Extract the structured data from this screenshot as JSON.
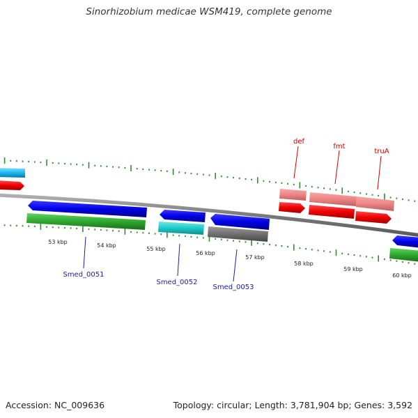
{
  "title": "Sinorhizobium medicae WSM419, complete genome",
  "footer": {
    "accession": "Accession: NC_009636",
    "topology": "Topology: circular; Length: 3,781,904 bp; Genes: 3,592"
  },
  "colors": {
    "backbone": "#888888",
    "tick": "#2e8b2e",
    "gene_label_blue": "#1a1aa8",
    "gene_label_red": "#cc0000"
  },
  "scale": {
    "tick_labels": [
      "53 kbp",
      "54 kbp",
      "55 kbp",
      "56 kbp",
      "57 kbp",
      "58 kbp",
      "59 kbp",
      "60 kbp"
    ]
  },
  "gene_labels": [
    {
      "text": "Smed_0051",
      "color": "blue"
    },
    {
      "text": "Smed_0052",
      "color": "blue"
    },
    {
      "text": "Smed_0053",
      "color": "blue"
    },
    {
      "text": "def",
      "color": "red"
    },
    {
      "text": "fmt",
      "color": "red"
    },
    {
      "text": "truA",
      "color": "red"
    }
  ]
}
